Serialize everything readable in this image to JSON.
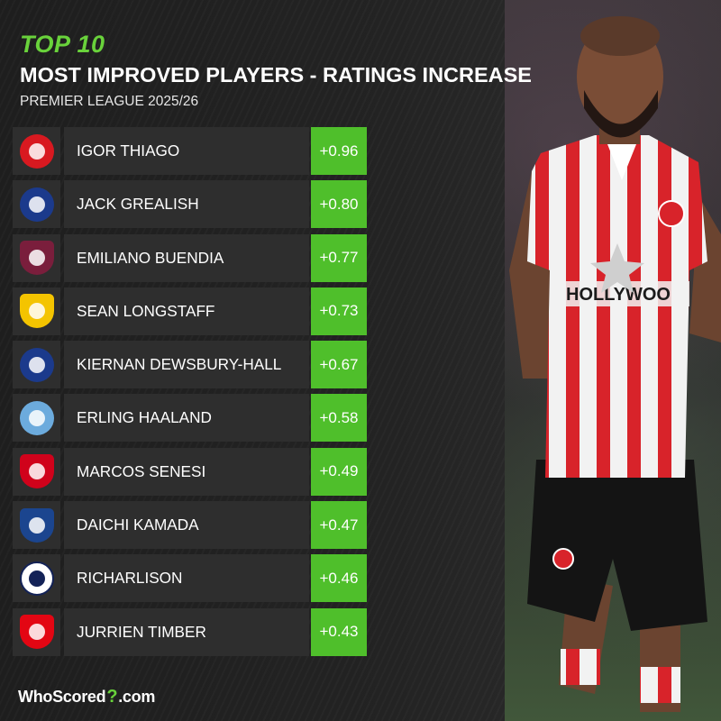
{
  "header": {
    "kicker": "TOP 10",
    "title": "MOST IMPROVED PLAYERS - RATINGS INCREASE",
    "subtitle": "PREMIER LEAGUE 2025/26"
  },
  "players": [
    {
      "name": "IGOR THIAGO",
      "value": "+0.96",
      "club_icon": "brentford-crest-icon",
      "color": "#d81920"
    },
    {
      "name": "JACK GREALISH",
      "value": "+0.80",
      "club_icon": "everton-crest-icon",
      "color": "#1b3a8c"
    },
    {
      "name": "EMILIANO BUENDIA",
      "value": "+0.77",
      "club_icon": "aston-villa-crest-icon",
      "color": "#7a1e3c"
    },
    {
      "name": "SEAN LONGSTAFF",
      "value": "+0.73",
      "club_icon": "leeds-crest-icon",
      "color": "#f4c400"
    },
    {
      "name": "KIERNAN DEWSBURY-HALL",
      "value": "+0.67",
      "club_icon": "everton-crest-icon",
      "color": "#1b3a8c"
    },
    {
      "name": "ERLING HAALAND",
      "value": "+0.58",
      "club_icon": "manchester-city-crest-icon",
      "color": "#6cabdd"
    },
    {
      "name": "MARCOS SENESI",
      "value": "+0.49",
      "club_icon": "bournemouth-crest-icon",
      "color": "#d0021b"
    },
    {
      "name": "DAICHI KAMADA",
      "value": "+0.47",
      "club_icon": "crystal-palace-crest-icon",
      "color": "#1b458f"
    },
    {
      "name": "RICHARLISON",
      "value": "+0.46",
      "club_icon": "tottenham-crest-icon",
      "color": "#ffffff"
    },
    {
      "name": "JURRIEN TIMBER",
      "value": "+0.43",
      "club_icon": "arsenal-crest-icon",
      "color": "#e30613"
    }
  ],
  "footer": {
    "logo_whoscored": "WhoScored",
    "logo_dot_com": ".com"
  },
  "colors": {
    "accent_green": "#69d23b",
    "value_green": "#4fbf2b",
    "row_bg": "#2e2e2e"
  }
}
